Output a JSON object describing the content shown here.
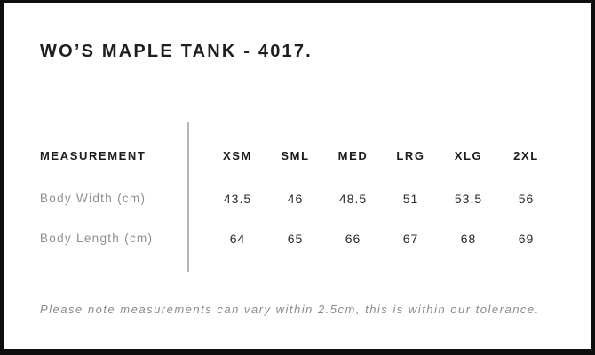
{
  "panel": {
    "title": "WO’S MAPLE TANK - 4017.",
    "tolerance_note": "Please note measurements can vary within 2.5cm, this is within our tolerance."
  },
  "size_chart": {
    "measurement_header": "MEASUREMENT",
    "size_columns": [
      "XSM",
      "SML",
      "MED",
      "LRG",
      "XLG",
      "2XL"
    ],
    "rows": [
      {
        "label": "Body Width (cm)",
        "values": [
          "43.5",
          "46",
          "48.5",
          "51",
          "53.5",
          "56"
        ]
      },
      {
        "label": "Body Length (cm)",
        "values": [
          "64",
          "65",
          "66",
          "67",
          "68",
          "69"
        ]
      }
    ]
  },
  "colors": {
    "text_primary": "#1e1e1e",
    "text_muted": "#8e8e8e",
    "frame_border": "#0e0e0e",
    "divider": "#b5b5b5",
    "background": "#ffffff"
  }
}
